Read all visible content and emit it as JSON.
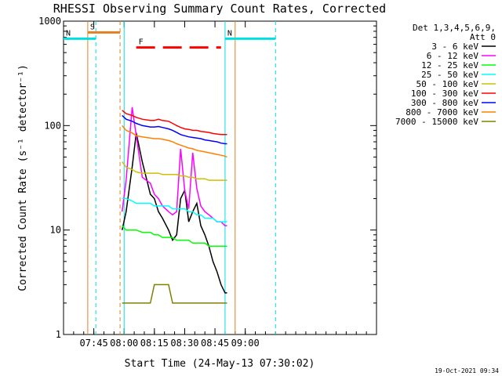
{
  "chart_data": {
    "type": "line",
    "title": "RHESSI Observing Summary Count Rates, Corrected",
    "xlabel": "Start Time (24-May-13 07:30:02)",
    "ylabel": "Corrected Count Rate (s⁻¹ detector⁻¹)",
    "x_unit": "minutes of day",
    "xlim": [
      450,
      605
    ],
    "ylim": [
      1,
      1000
    ],
    "y_scale": "log",
    "x_ticks": [
      {
        "value": 465,
        "label": "07:45"
      },
      {
        "value": 480,
        "label": "08:00"
      },
      {
        "value": 495,
        "label": "08:15"
      },
      {
        "value": 510,
        "label": "08:30"
      },
      {
        "value": 525,
        "label": "08:45"
      },
      {
        "value": 540,
        "label": "09:00"
      }
    ],
    "y_ticks": [
      {
        "value": 1,
        "label": "1"
      },
      {
        "value": 10,
        "label": "10"
      },
      {
        "value": 100,
        "label": "100"
      },
      {
        "value": 1000,
        "label": "1000"
      }
    ],
    "legend": {
      "position": "right",
      "header_lines": [
        "Det 1,3,4,5,6,9,",
        "Att 0"
      ]
    },
    "flags": [
      {
        "label": "S",
        "color": "#e08020",
        "x": [
          462,
          478
        ],
        "y": 780
      },
      {
        "label": "N",
        "color": "#00e0e0",
        "x": [
          450,
          466
        ],
        "y": 680
      },
      {
        "label": "N",
        "color": "#00e0e0",
        "x": [
          530,
          555
        ],
        "y": 680
      },
      {
        "label": "F",
        "color": "#ff0000",
        "x": [
          486,
          528
        ],
        "y": 560
      }
    ],
    "vlines": [
      {
        "x": 462,
        "color": "#e08020",
        "dash": false
      },
      {
        "x": 466,
        "color": "#00e0e0",
        "dash": true
      },
      {
        "x": 478,
        "color": "#e08020",
        "dash": true
      },
      {
        "x": 480,
        "color": "#00e0e0",
        "dash": false
      },
      {
        "x": 530,
        "color": "#00e0e0",
        "dash": false
      },
      {
        "x": 535,
        "color": "#e08020",
        "dash": false
      },
      {
        "x": 555,
        "color": "#00e0e0",
        "dash": true
      }
    ],
    "series": [
      {
        "name": "3 - 6 keV",
        "color": "#000000",
        "x": [
          479,
          481,
          484,
          486,
          489,
          493,
          495,
          497,
          499,
          502,
          504,
          506,
          508,
          510,
          512,
          514,
          516,
          518,
          520,
          522,
          524,
          526,
          528,
          530,
          531
        ],
        "values": [
          10,
          15,
          40,
          85,
          45,
          22,
          20,
          15,
          13,
          10,
          8,
          9,
          20,
          24,
          12,
          15,
          18,
          11,
          9,
          7,
          5,
          4,
          3,
          2.5,
          2.5
        ]
      },
      {
        "name": "6 - 12 keV",
        "color": "#ff00ff",
        "x": [
          479,
          481,
          484,
          486,
          489,
          493,
          495,
          497,
          499,
          502,
          504,
          506,
          508,
          510,
          512,
          514,
          516,
          518,
          520,
          522,
          524,
          526,
          528,
          530,
          531
        ],
        "values": [
          15,
          30,
          150,
          80,
          32,
          28,
          22,
          20,
          17,
          15,
          14,
          15,
          60,
          24,
          16,
          55,
          25,
          17,
          15,
          14,
          13,
          12,
          12,
          11,
          11
        ]
      },
      {
        "name": "12 - 25 keV",
        "color": "#00ff00",
        "x": [
          479,
          481,
          484,
          486,
          489,
          493,
          495,
          497,
          499,
          502,
          504,
          506,
          508,
          510,
          512,
          514,
          516,
          518,
          520,
          522,
          524,
          526,
          528,
          530,
          531
        ],
        "values": [
          11,
          10,
          10,
          10,
          9.5,
          9.5,
          9,
          9,
          8.5,
          8.5,
          8.5,
          8,
          8,
          8,
          8,
          7.5,
          7.5,
          7.5,
          7.5,
          7,
          7,
          7,
          7,
          7,
          7
        ]
      },
      {
        "name": "25 - 50 keV",
        "color": "#00ffff",
        "x": [
          479,
          481,
          484,
          486,
          489,
          493,
          495,
          497,
          499,
          502,
          504,
          506,
          508,
          510,
          512,
          514,
          516,
          518,
          520,
          522,
          524,
          526,
          528,
          530,
          531
        ],
        "values": [
          20,
          20,
          19,
          18,
          18,
          18,
          17,
          17,
          17,
          17,
          16,
          16,
          16,
          16,
          15,
          15,
          14,
          14,
          13,
          13,
          13,
          12,
          12,
          12,
          12
        ]
      },
      {
        "name": "50 - 100 keV",
        "color": "#d0c000",
        "x": [
          479,
          481,
          484,
          486,
          489,
          493,
          495,
          497,
          499,
          502,
          504,
          506,
          508,
          510,
          512,
          514,
          516,
          518,
          520,
          522,
          524,
          526,
          528,
          530,
          531
        ],
        "values": [
          45,
          40,
          38,
          36,
          35,
          35,
          35,
          35,
          34,
          34,
          34,
          34,
          33,
          33,
          32,
          32,
          31,
          31,
          31,
          30,
          30,
          30,
          30,
          30,
          30
        ]
      },
      {
        "name": "100 - 300 keV",
        "color": "#ff0000",
        "x": [
          479,
          481,
          484,
          486,
          489,
          493,
          495,
          497,
          499,
          502,
          504,
          506,
          508,
          510,
          512,
          514,
          516,
          518,
          520,
          522,
          524,
          526,
          528,
          530,
          531
        ],
        "values": [
          140,
          130,
          125,
          120,
          115,
          112,
          112,
          115,
          112,
          110,
          105,
          100,
          96,
          93,
          92,
          90,
          90,
          88,
          87,
          86,
          84,
          83,
          82,
          82,
          82
        ]
      },
      {
        "name": "300 - 800 keV",
        "color": "#0000ff",
        "x": [
          479,
          481,
          484,
          486,
          489,
          493,
          495,
          497,
          499,
          502,
          504,
          506,
          508,
          510,
          512,
          514,
          516,
          518,
          520,
          522,
          524,
          526,
          528,
          530,
          531
        ],
        "values": [
          125,
          115,
          110,
          105,
          100,
          97,
          97,
          98,
          96,
          93,
          90,
          86,
          82,
          80,
          78,
          77,
          76,
          75,
          73,
          72,
          71,
          70,
          68,
          67,
          67
        ]
      },
      {
        "name": "800 - 7000 keV",
        "color": "#ff8000",
        "x": [
          479,
          481,
          484,
          486,
          489,
          493,
          495,
          497,
          499,
          502,
          504,
          506,
          508,
          510,
          512,
          514,
          516,
          518,
          520,
          522,
          524,
          526,
          528,
          530,
          531
        ],
        "values": [
          100,
          90,
          85,
          80,
          78,
          76,
          75,
          75,
          74,
          72,
          70,
          67,
          65,
          63,
          61,
          60,
          58,
          57,
          56,
          55,
          54,
          53,
          52,
          51,
          50
        ]
      },
      {
        "name": "7000 - 15000 keV",
        "color": "#808000",
        "x": [
          479,
          481,
          484,
          486,
          489,
          493,
          495,
          497,
          499,
          502,
          504,
          506,
          508,
          510,
          512,
          514,
          516,
          518,
          520,
          522,
          524,
          526,
          528,
          530,
          531
        ],
        "values": [
          2,
          2,
          2,
          2,
          2,
          2,
          3,
          3,
          3,
          3,
          2,
          2,
          2,
          2,
          2,
          2,
          2,
          2,
          2,
          2,
          2,
          2,
          2,
          2,
          2
        ]
      }
    ]
  },
  "footer": {
    "timestamp": "19-Oct-2021 09:34"
  }
}
